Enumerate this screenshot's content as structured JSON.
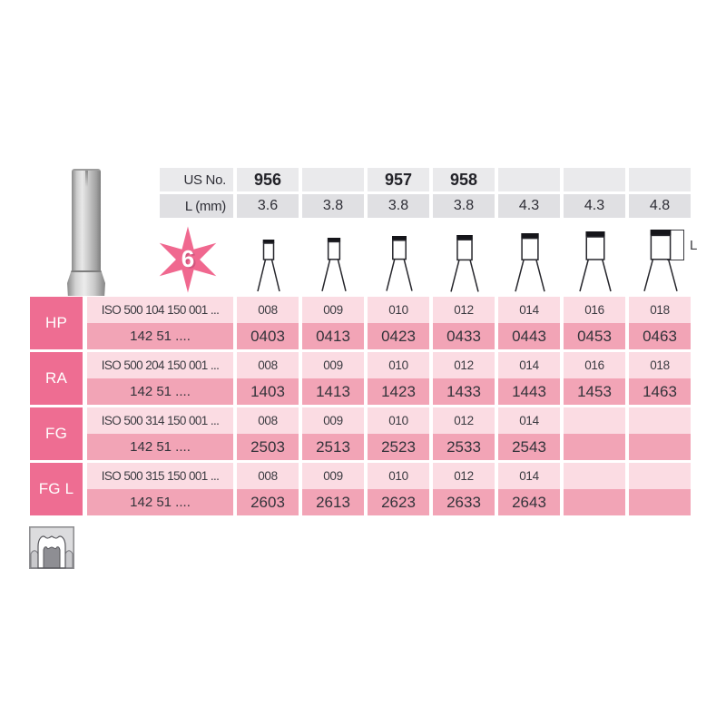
{
  "colors": {
    "accent_pink": "#ee6d92",
    "row_light_pink": "#fbdce3",
    "row_mid_pink": "#f2a4b6",
    "header_gray_light": "#eaeaec",
    "header_gray_dark": "#e0e0e3",
    "text_dark": "#2e2e36"
  },
  "header": {
    "us_no_label": "US No.",
    "l_mm_label": "L (mm)",
    "us_no": [
      "956",
      "",
      "957",
      "958",
      "",
      "",
      ""
    ],
    "l_mm": [
      "3.6",
      "3.8",
      "3.8",
      "3.8",
      "4.3",
      "4.3",
      "4.8"
    ],
    "star_value": "6",
    "l_bracket_label": "L"
  },
  "rows": [
    {
      "label": "HP",
      "iso": "ISO 500 104 150 001 ...",
      "order_prefix": "142 51 ....",
      "sizes": [
        "008",
        "009",
        "010",
        "012",
        "014",
        "016",
        "018"
      ],
      "codes": [
        "0403",
        "0413",
        "0423",
        "0433",
        "0443",
        "0453",
        "0463"
      ]
    },
    {
      "label": "RA",
      "iso": "ISO 500 204 150 001 ...",
      "order_prefix": "142 51 ....",
      "sizes": [
        "008",
        "009",
        "010",
        "012",
        "014",
        "016",
        "018"
      ],
      "codes": [
        "1403",
        "1413",
        "1423",
        "1433",
        "1443",
        "1453",
        "1463"
      ]
    },
    {
      "label": "FG",
      "iso": "ISO 500 314 150 001 ...",
      "order_prefix": "142 51 ....",
      "sizes": [
        "008",
        "009",
        "010",
        "012",
        "014",
        "",
        ""
      ],
      "codes": [
        "2503",
        "2513",
        "2523",
        "2533",
        "2543",
        "",
        ""
      ]
    },
    {
      "label": "FG L",
      "iso": "ISO 500 315 150 001 ...",
      "order_prefix": "142 51 ....",
      "sizes": [
        "008",
        "009",
        "010",
        "012",
        "014",
        "",
        ""
      ],
      "codes": [
        "2603",
        "2613",
        "2623",
        "2633",
        "2643",
        "",
        ""
      ]
    }
  ],
  "icons": {
    "star_badge": "six-point-star-badge",
    "bur_diagram": "flat-end-cylinder-bur-outline",
    "product_photo": "cylinder-bur-head-photo",
    "tooth_pictogram": "prepared-tooth-cross-section"
  }
}
